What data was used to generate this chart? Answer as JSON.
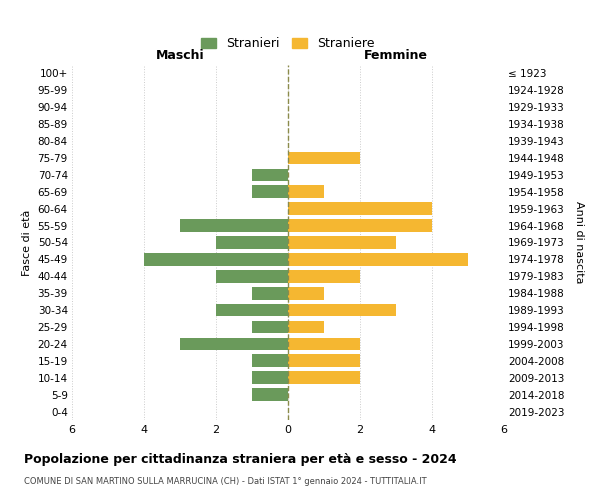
{
  "age_groups": [
    "100+",
    "95-99",
    "90-94",
    "85-89",
    "80-84",
    "75-79",
    "70-74",
    "65-69",
    "60-64",
    "55-59",
    "50-54",
    "45-49",
    "40-44",
    "35-39",
    "30-34",
    "25-29",
    "20-24",
    "15-19",
    "10-14",
    "5-9",
    "0-4"
  ],
  "birth_years": [
    "≤ 1923",
    "1924-1928",
    "1929-1933",
    "1934-1938",
    "1939-1943",
    "1944-1948",
    "1949-1953",
    "1954-1958",
    "1959-1963",
    "1964-1968",
    "1969-1973",
    "1974-1978",
    "1979-1983",
    "1984-1988",
    "1989-1993",
    "1994-1998",
    "1999-2003",
    "2004-2008",
    "2009-2013",
    "2014-2018",
    "2019-2023"
  ],
  "males": [
    0,
    0,
    0,
    0,
    0,
    0,
    1,
    1,
    0,
    3,
    2,
    4,
    2,
    1,
    2,
    1,
    3,
    1,
    1,
    1,
    0
  ],
  "females": [
    0,
    0,
    0,
    0,
    0,
    2,
    0,
    1,
    4,
    4,
    3,
    5,
    2,
    1,
    3,
    1,
    2,
    2,
    2,
    0,
    0
  ],
  "male_color": "#6a9a5b",
  "female_color": "#f5b731",
  "background_color": "#ffffff",
  "grid_color": "#cccccc",
  "center_line_color": "#8b8b4b",
  "title": "Popolazione per cittadinanza straniera per età e sesso - 2024",
  "subtitle": "COMUNE DI SAN MARTINO SULLA MARRUCINA (CH) - Dati ISTAT 1° gennaio 2024 - TUTTITALIA.IT",
  "xlabel_left": "Maschi",
  "xlabel_right": "Femmine",
  "ylabel_left": "Fasce di età",
  "ylabel_right": "Anni di nascita",
  "legend_males": "Stranieri",
  "legend_females": "Straniere",
  "xlim": 6,
  "xticks": [
    -6,
    -4,
    -2,
    0,
    2,
    4,
    6
  ],
  "xticklabels": [
    "6",
    "4",
    "2",
    "0",
    "2",
    "4",
    "6"
  ]
}
